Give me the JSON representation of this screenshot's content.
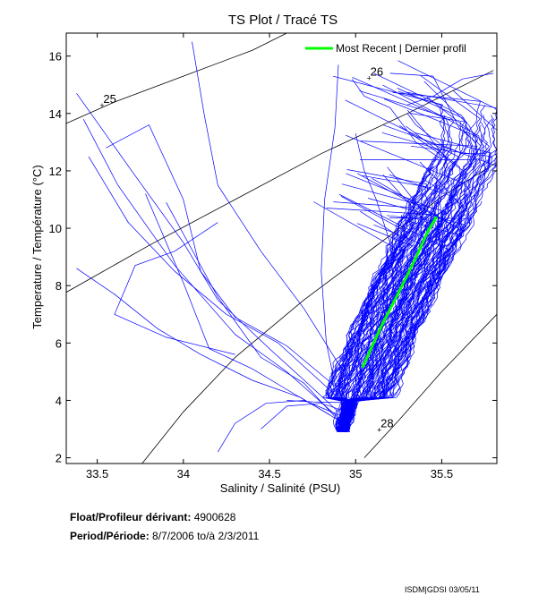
{
  "chart_data": {
    "type": "line",
    "title": "TS Plot / Tracé TS",
    "xlabel": "Salinity / Salinité (PSU)",
    "ylabel": "Temperature / Température (°C)",
    "xlim": [
      33.32,
      35.82
    ],
    "ylim": [
      1.8,
      16.8
    ],
    "xticks": [
      "33.5",
      "34",
      "34.5",
      "35",
      "35.5"
    ],
    "xtick_values": [
      33.5,
      34,
      34.5,
      35,
      35.5
    ],
    "yticks": [
      "2",
      "4",
      "6",
      "8",
      "10",
      "12",
      "14",
      "16"
    ],
    "ytick_values": [
      2,
      4,
      6,
      8,
      10,
      12,
      14,
      16
    ],
    "grid": false,
    "legend": {
      "position": "top-right",
      "entries": [
        {
          "label": "Most Recent | Dernier profil",
          "color": "#00ff00"
        }
      ]
    },
    "density_contours": [
      {
        "label": "25",
        "label_at": [
          33.53,
          14.3
        ],
        "points": [
          [
            33.3,
            13.6
          ],
          [
            33.6,
            14.4
          ],
          [
            34.0,
            15.3
          ],
          [
            34.4,
            16.2
          ],
          [
            34.6,
            16.8
          ]
        ]
      },
      {
        "label": "26",
        "label_at": [
          35.08,
          15.25
        ],
        "points": [
          [
            33.3,
            7.7
          ],
          [
            33.8,
            9.4
          ],
          [
            34.3,
            11.0
          ],
          [
            34.8,
            12.6
          ],
          [
            35.3,
            14.0
          ],
          [
            35.8,
            15.5
          ]
        ]
      },
      {
        "label": "",
        "label_at": null,
        "points": [
          [
            33.76,
            1.8
          ],
          [
            34.0,
            3.6
          ],
          [
            34.3,
            5.5
          ],
          [
            34.7,
            7.5
          ],
          [
            35.1,
            9.3
          ],
          [
            35.5,
            11.1
          ],
          [
            35.82,
            12.3
          ]
        ]
      },
      {
        "label": "28",
        "label_at": [
          35.14,
          3.0
        ],
        "points": [
          [
            35.05,
            2.0
          ],
          [
            35.25,
            3.3
          ],
          [
            35.5,
            5.0
          ],
          [
            35.82,
            7.0
          ]
        ]
      }
    ],
    "series": [
      {
        "name": "Most Recent | Dernier profil",
        "color": "#00ff00",
        "x": [
          35.04,
          35.15,
          35.27,
          35.36,
          35.42,
          35.47
        ],
        "y": [
          5.15,
          6.6,
          8.0,
          9.1,
          9.9,
          10.4
        ]
      },
      {
        "name": "Historical profiles",
        "color": "#0000ff",
        "profiles": []
      }
    ]
  },
  "float_label": "Float/Profileur dérivant:",
  "float_id": "4900628",
  "period_label": "Period/Période:",
  "period_start": "8/7/2006",
  "period_sep": "to/à",
  "period_end": "2/3/2011",
  "footer": "ISDM|GDSI 03/05/11"
}
